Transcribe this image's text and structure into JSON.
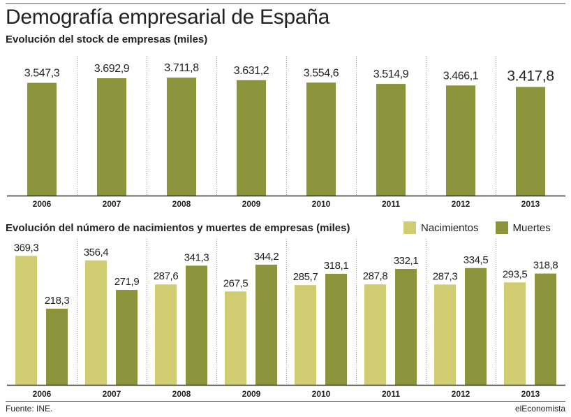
{
  "header": {
    "title": "Demografía empresarial de España"
  },
  "footer": {
    "source": "Fuente: INE.",
    "brand": "elEconomista"
  },
  "colors": {
    "olive": "#8b943a",
    "light_olive": "#cfcc71",
    "divider": "#9a9a9a",
    "axis": "#333333"
  },
  "chart_data": [
    {
      "type": "bar",
      "title": "Evolución del stock de empresas (miles)",
      "categories": [
        "2006",
        "2007",
        "2008",
        "2009",
        "2010",
        "2011",
        "2012",
        "2013"
      ],
      "values": [
        3547.3,
        3692.9,
        3711.8,
        3631.2,
        3554.6,
        3514.9,
        3466.1,
        3417.8
      ],
      "value_labels": [
        "3.547,3",
        "3.692,9",
        "3.711,8",
        "3.631,2",
        "3.554,6",
        "3.514,9",
        "3.466,1",
        "3.417,8"
      ],
      "ylim": [
        0,
        4000
      ],
      "grid": false
    },
    {
      "type": "bar",
      "title": "Evolución del número de nacimientos y muertes de empresas (miles)",
      "categories": [
        "2006",
        "2007",
        "2008",
        "2009",
        "2010",
        "2011",
        "2012",
        "2013"
      ],
      "series": [
        {
          "name": "Nacimientos",
          "values": [
            369.3,
            356.4,
            287.6,
            267.5,
            285.7,
            287.8,
            287.3,
            293.5
          ],
          "value_labels": [
            "369,3",
            "356,4",
            "287,6",
            "267,5",
            "285,7",
            "287,8",
            "287,3",
            "293,5"
          ]
        },
        {
          "name": "Muertes",
          "values": [
            218.3,
            271.9,
            341.3,
            344.2,
            318.1,
            332.1,
            334.5,
            318.8
          ],
          "value_labels": [
            "218,3",
            "271,9",
            "341,3",
            "344,2",
            "318,1",
            "332,1",
            "334,5",
            "318,8"
          ]
        }
      ],
      "ylim": [
        0,
        400
      ],
      "legend": "top-right",
      "grid": false
    }
  ]
}
